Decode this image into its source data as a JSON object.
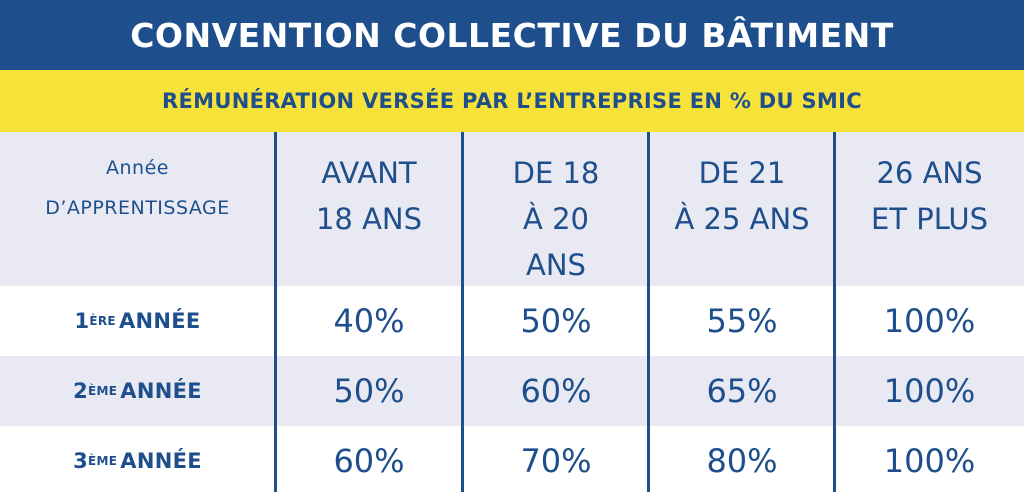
{
  "title": "CONVENTION COLLECTIVE DU BÂTIMENT",
  "subtitle": "RÉMUNÉRATION VERSÉE PAR L’ENTREPRISE EN % DU SMIC",
  "header": {
    "first": [
      "Année",
      "D’APPRENTISSAGE"
    ],
    "columns": [
      [
        "AVANT",
        "18 ANS"
      ],
      [
        "DE 18",
        "À 20",
        "ANS"
      ],
      [
        "DE 21",
        "À 25 ANS"
      ],
      [
        "26 ANS",
        "ET PLUS"
      ]
    ]
  },
  "rows": [
    {
      "num": "1",
      "sup": "ÈRE",
      "label": "ANNÉE",
      "values": [
        "40%",
        "50%",
        "55%",
        "100%"
      ]
    },
    {
      "num": "2",
      "sup": "ÈME",
      "label": "ANNÉE",
      "values": [
        "50%",
        "60%",
        "65%",
        "100%"
      ]
    },
    {
      "num": "3",
      "sup": "ÈME",
      "label": "ANNÉE",
      "values": [
        "60%",
        "70%",
        "80%",
        "100%"
      ]
    }
  ]
}
